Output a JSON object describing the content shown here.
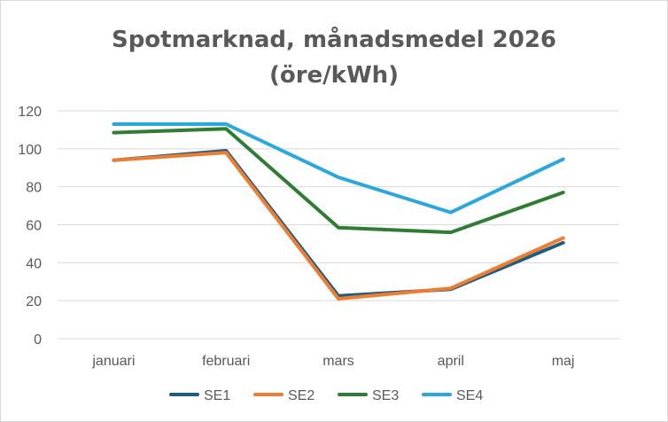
{
  "chart_data": {
    "type": "line",
    "title": "Spotmarknad, månadsmedel 2026",
    "subtitle": "(öre/kWh)",
    "categories": [
      "januari",
      "februari",
      "mars",
      "april",
      "maj"
    ],
    "ylim": [
      0,
      120
    ],
    "yticks": [
      0,
      20,
      40,
      60,
      80,
      100,
      120
    ],
    "grid": true,
    "legend_position": "bottom",
    "series": [
      {
        "name": "SE1",
        "color": "#1f5c82",
        "values": [
          94,
          99,
          22.5,
          26,
          50.5
        ]
      },
      {
        "name": "SE2",
        "color": "#ed7d31",
        "values": [
          94,
          98,
          21,
          26.5,
          53
        ]
      },
      {
        "name": "SE3",
        "color": "#2e7d32",
        "values": [
          108.5,
          110.5,
          58.5,
          56,
          77
        ]
      },
      {
        "name": "SE4",
        "color": "#2aa7dd",
        "values": [
          113,
          113,
          85,
          66.5,
          94.5
        ]
      }
    ]
  }
}
